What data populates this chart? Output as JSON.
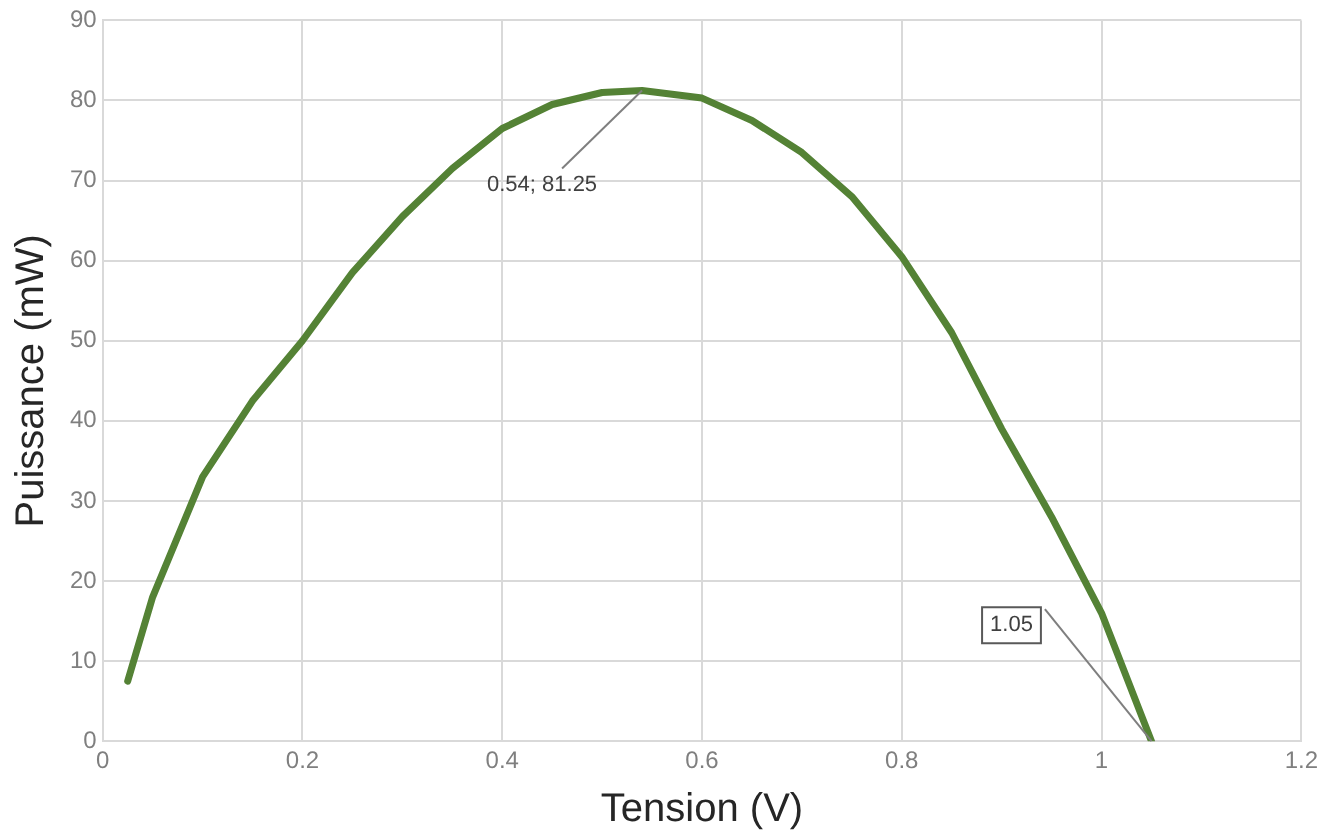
{
  "chart_data": {
    "type": "line",
    "xlabel": "Tension (V)",
    "ylabel": "Puissance (mW)",
    "x": [
      0.025,
      0.05,
      0.1,
      0.15,
      0.2,
      0.25,
      0.3,
      0.35,
      0.4,
      0.45,
      0.5,
      0.54,
      0.6,
      0.65,
      0.7,
      0.75,
      0.8,
      0.85,
      0.9,
      0.95,
      1.0,
      1.05
    ],
    "series": [
      {
        "color": "#548235",
        "values": [
          7.5,
          18,
          33,
          42.5,
          50,
          58.5,
          65.5,
          71.5,
          76.5,
          79.5,
          81,
          81.25,
          80.3,
          77.5,
          73.5,
          68,
          60.5,
          51,
          39,
          28,
          16,
          0
        ]
      }
    ],
    "xlim": [
      0,
      1.2
    ],
    "xticks": [
      0,
      0.2,
      0.4,
      0.6,
      0.8,
      1,
      1.2
    ],
    "ylim": [
      0,
      90
    ],
    "yticks": [
      0,
      10,
      20,
      30,
      40,
      50,
      60,
      70,
      80,
      90
    ],
    "grid": true,
    "marker": "none",
    "line_style": "solid",
    "annotations": [
      {
        "text": "0.54; 81.25",
        "x": 0.54,
        "y": 81.25
      },
      {
        "text": "1.05",
        "x": 1.05,
        "y": 0
      }
    ]
  }
}
